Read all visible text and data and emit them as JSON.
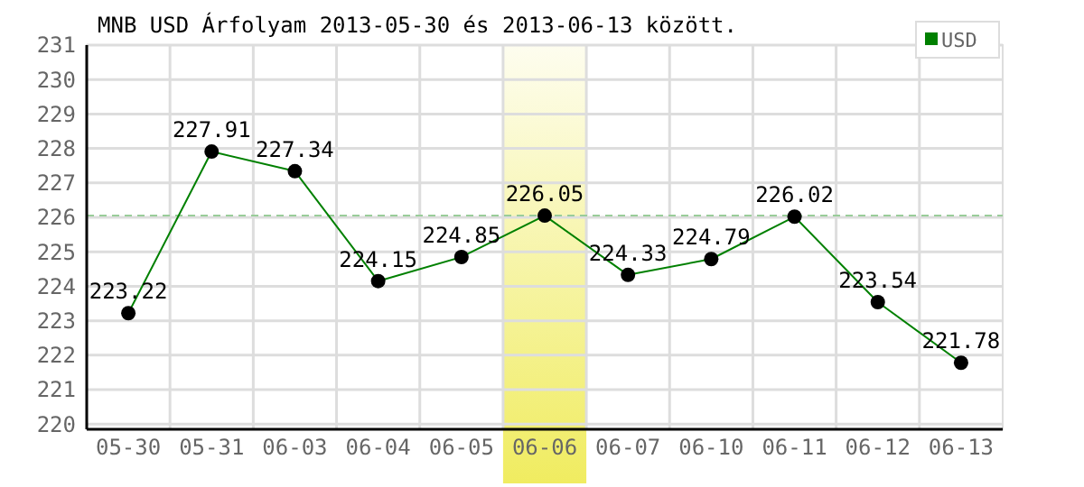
{
  "chart_data": {
    "type": "line",
    "title": "MNB USD Árfolyam 2013-05-30 és 2013-06-13 között.",
    "categories": [
      "05-30",
      "05-31",
      "06-03",
      "06-04",
      "06-05",
      "06-06",
      "06-07",
      "06-10",
      "06-11",
      "06-12",
      "06-13"
    ],
    "series": [
      {
        "name": "USD",
        "color": "#008000",
        "values": [
          223.22,
          227.91,
          227.34,
          224.15,
          224.85,
          226.05,
          224.33,
          224.79,
          226.02,
          223.54,
          221.78
        ]
      }
    ],
    "ylim": [
      219.85,
      231
    ],
    "yticks": [
      220,
      221,
      222,
      223,
      224,
      225,
      226,
      227,
      228,
      229,
      230,
      231
    ],
    "ref_lines": [
      {
        "axis": "y",
        "value": 226.05,
        "color": "#99cc99",
        "line_style": "dashed"
      }
    ],
    "bands": [
      {
        "axis": "x",
        "from": "06-06",
        "to": "06-06",
        "color": "#f0ec60"
      }
    ],
    "grid": true,
    "legend": "top right",
    "marker": "circle",
    "line_style": "solid",
    "data_labels": true
  }
}
